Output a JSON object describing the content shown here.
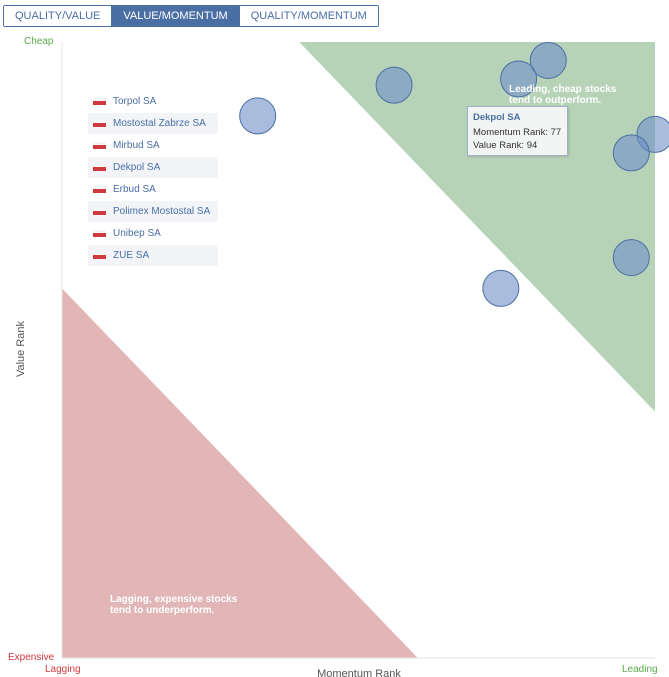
{
  "tabs": {
    "quality_value": "QUALITY/VALUE",
    "value_momentum": "VALUE/MOMENTUM",
    "quality_momentum": "QUALITY/MOMENTUM",
    "active": "VALUE/MOMENTUM"
  },
  "axis": {
    "y_top": "Cheap",
    "y_bottom": "Expensive",
    "x_left": "Lagging",
    "x_right": "Leading",
    "y_title": "Value Rank",
    "x_title": "Momentum Rank"
  },
  "notes": {
    "leading": "Leading, cheap stocks tend to outperform.",
    "lagging": "Lagging, expensive stocks tend to underperform."
  },
  "tooltip": {
    "title": "Dekpol SA",
    "momentum_label": "Momentum Rank:",
    "momentum_value": "77",
    "value_label": "Value Rank:",
    "value_value": "94"
  },
  "colors": {
    "accent": "#4a6fa5",
    "leading_region": "#b6d3b8",
    "lagging_region": "#e2b6b7",
    "bubble_fill": "#6f8fc8",
    "bubble_stroke": "#4a6fa5",
    "green_label": "#5aaa4a",
    "red_label": "#d0393e"
  },
  "chart_data": {
    "type": "scatter",
    "xlabel": "Momentum Rank",
    "ylabel": "Value Rank",
    "xlim": [
      0,
      100
    ],
    "ylim": [
      0,
      100
    ],
    "grid": false,
    "legend_position": "top-left",
    "series": [
      {
        "name": "Torpol SA",
        "x": [
          33
        ],
        "y": [
          88
        ]
      },
      {
        "name": "Mostostal Zabrze SA",
        "x": [
          56
        ],
        "y": [
          93
        ]
      },
      {
        "name": "Mirbud SA",
        "x": [
          82
        ],
        "y": [
          97
        ]
      },
      {
        "name": "Dekpol SA",
        "x": [
          77
        ],
        "y": [
          94
        ]
      },
      {
        "name": "Erbud SA",
        "x": [
          100
        ],
        "y": [
          85
        ]
      },
      {
        "name": "Polimex Mostostal SA",
        "x": [
          96
        ],
        "y": [
          82
        ]
      },
      {
        "name": "Unibep SA",
        "x": [
          96
        ],
        "y": [
          65
        ]
      },
      {
        "name": "ZUE SA",
        "x": [
          74
        ],
        "y": [
          60
        ]
      }
    ]
  }
}
